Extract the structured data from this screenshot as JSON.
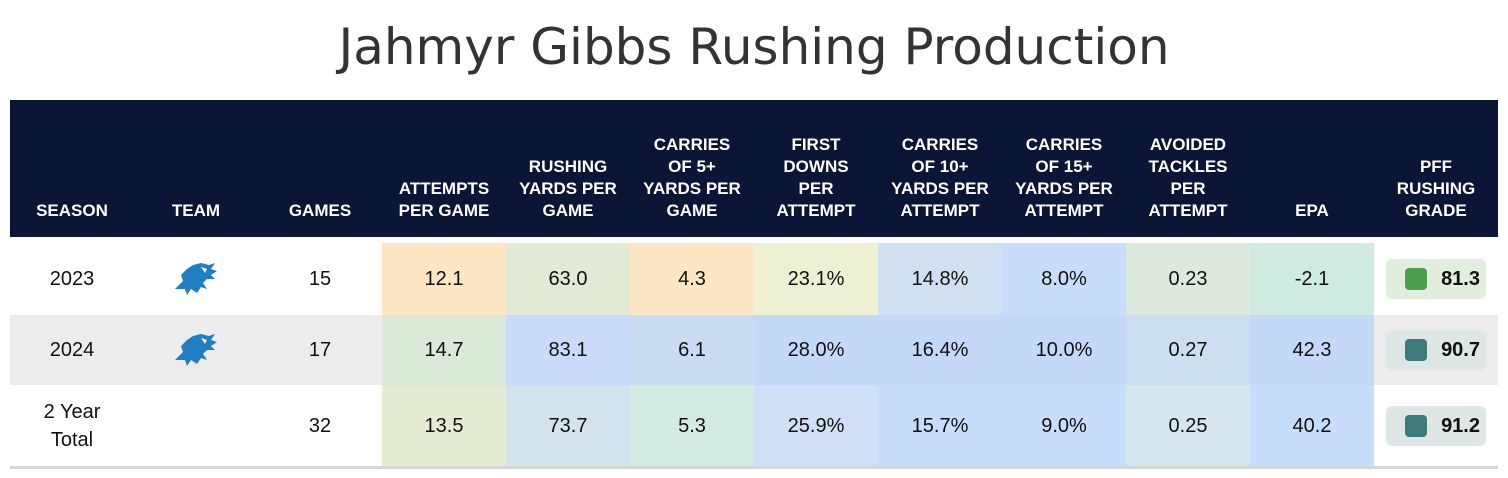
{
  "title": "Jahmyr Gibbs Rushing Production",
  "columns": [
    {
      "label": "SEASON"
    },
    {
      "label": "TEAM"
    },
    {
      "label": "GAMES"
    },
    {
      "label": "ATTEMPTS PER GAME"
    },
    {
      "label": "RUSHING YARDS PER GAME"
    },
    {
      "label": "CARRIES OF 5+ YARDS PER GAME"
    },
    {
      "label": "FIRST DOWNS PER ATTEMPT"
    },
    {
      "label": "CARRIES OF 10+ YARDS PER ATTEMPT"
    },
    {
      "label": "CARRIES OF 15+ YARDS PER ATTEMPT"
    },
    {
      "label": "AVOIDED TACKLES PER ATTEMPT"
    },
    {
      "label": "EPA"
    },
    {
      "label": "PFF RUSHING GRADE"
    }
  ],
  "rows": [
    {
      "season": "2023",
      "team_icon": "lions-logo-icon",
      "games": "15",
      "apg": "12.1",
      "rypg": "63.0",
      "c5pg": "4.3",
      "fdpa": "23.1%",
      "c10pa": "14.8%",
      "c15pa": "8.0%",
      "atpa": "0.23",
      "epa": "-2.1",
      "grade": "81.3",
      "colors": [
        "#fde6c4",
        "#e1ebd6",
        "#fde6c4",
        "#eef0d3",
        "#cfe0f3",
        "#c8dcfb",
        "#dde9dc",
        "#cfeadf"
      ],
      "grade_bg": "#e1eedd",
      "grade_dot": "#4d9e4a"
    },
    {
      "season": "2024",
      "team_icon": "lions-logo-icon",
      "games": "17",
      "apg": "14.7",
      "rypg": "83.1",
      "c5pg": "6.1",
      "fdpa": "28.0%",
      "c10pa": "16.4%",
      "c15pa": "10.0%",
      "atpa": "0.27",
      "epa": "42.3",
      "grade": "90.7",
      "colors": [
        "#dbe9d8",
        "#c9dbf8",
        "#c9dcf2",
        "#c4d8f8",
        "#c4d8f8",
        "#c4d8f8",
        "#ccdff0",
        "#c4d8f8"
      ],
      "grade_bg": "#dfe6e6",
      "grade_dot": "#3f7b7c"
    },
    {
      "season": "2 Year Total",
      "team_icon": "",
      "games": "32",
      "apg": "13.5",
      "rypg": "73.7",
      "c5pg": "5.3",
      "fdpa": "25.9%",
      "c10pa": "15.7%",
      "c15pa": "9.0%",
      "atpa": "0.25",
      "epa": "40.2",
      "grade": "91.2",
      "colors": [
        "#e4ecd4",
        "#d3e3ec",
        "#d2ece2",
        "#cfe0f6",
        "#c8dcfb",
        "#c8dcfb",
        "#d5e7ec",
        "#c8dcfb"
      ],
      "grade_bg": "#dfe6e6",
      "grade_dot": "#3f7b7c"
    }
  ]
}
